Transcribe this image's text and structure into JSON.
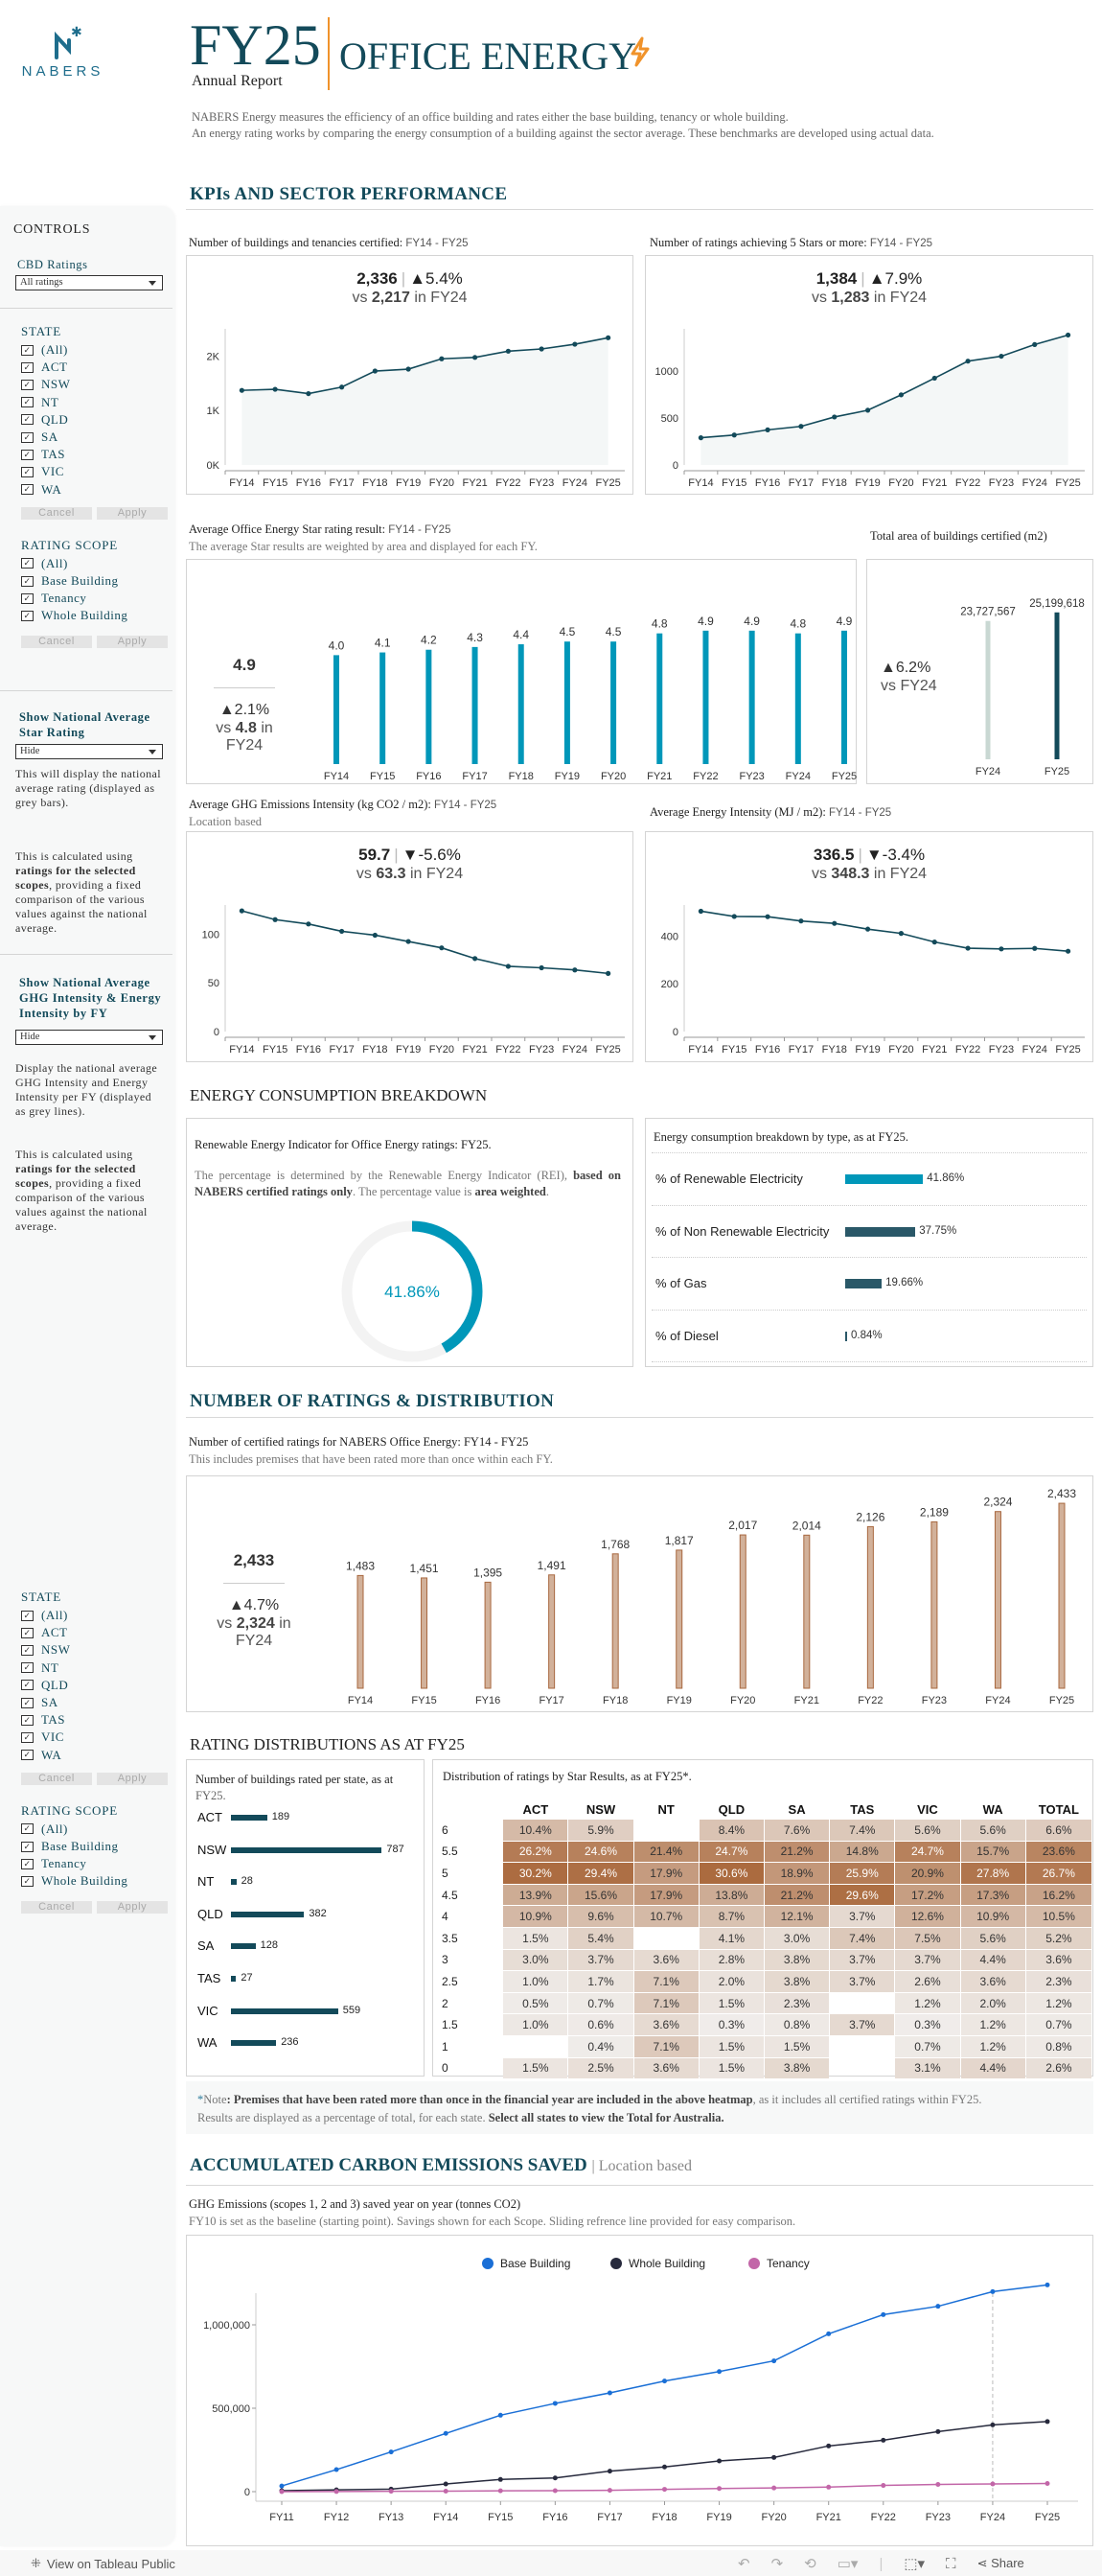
{
  "header": {
    "logo_text": "NABERS",
    "fy": "FY25",
    "subtitle": "Annual Report",
    "title": "OFFICE ENERGY",
    "description_1": "NABERS Energy measures the efficiency of an office building and rates either the base building, tenancy or whole building.",
    "description_2": "An energy rating works by comparing the energy consumption of a building against the sector average. These benchmarks are developed using actual data.",
    "accent": "#f0932b",
    "brand": "#134a5a"
  },
  "controls": {
    "title": "CONTROLS",
    "cbd_label": "CBD Ratings",
    "cbd_value": "All ratings",
    "state_label": "STATE",
    "states": [
      "(All)",
      "ACT",
      "NSW",
      "NT",
      "QLD",
      "SA",
      "TAS",
      "VIC",
      "WA"
    ],
    "cancel": "Cancel",
    "apply": "Apply",
    "scope_label": "RATING SCOPE",
    "scopes": [
      "(All)",
      "Base Building",
      "Tenancy",
      "Whole Building"
    ],
    "nat_star_label": "Show National Average Star Rating",
    "nat_star_value": "Hide",
    "nat_star_text": "This will display the national average rating (displayed as grey bars).",
    "calc_pre": "This is calculated using ",
    "calc_bold": "ratings for the selected scopes",
    "calc_post": ", providing a fixed comparison of the various values against the national average.",
    "nat_ghg_label": "Show National Average GHG Intensity & Energy Intensity by FY",
    "nat_ghg_value": "Hide",
    "nat_ghg_text": "Display the national average GHG Intensity and Energy Intensity per FY (displayed as grey lines)."
  },
  "kpis": {
    "heading": "KPIs AND SECTOR PERFORMANCE",
    "buildings": {
      "title": "Number of buildings and tenancies certified: ",
      "range": "FY14 - FY25",
      "value": "2,336",
      "change": "▲5.4%",
      "vs_pre": "vs ",
      "prev": "2,217",
      "vs_post": " in FY24"
    },
    "five_star": {
      "title": "Number of ratings achieving 5 Stars or more: ",
      "range": "FY14 - FY25",
      "value": "1,384",
      "change": "▲7.9%",
      "vs_pre": "vs ",
      "prev": "1,283",
      "vs_post": " in FY24"
    },
    "avg_star": {
      "title": "Average Office Energy Star rating result: ",
      "range": "FY14 - FY25",
      "subtitle": "The average Star results are weighted by area and displayed for each FY.",
      "value": "4.9",
      "change": "▲2.1%",
      "vs_pre": "vs ",
      "prev": "4.8",
      "vs_post": " in FY24"
    },
    "area": {
      "title": "Total area of buildings certified (m2)",
      "change": "▲6.2%",
      "vs": "vs FY24"
    },
    "ghg": {
      "title": "Average GHG Emissions Intensity (kg CO2 / m2): ",
      "range": "FY14 - FY25",
      "subtitle": "Location based",
      "value": "59.7",
      "change": "▼-5.6%",
      "vs_pre": "vs ",
      "prev": "63.3",
      "vs_post": " in FY24"
    },
    "energy": {
      "title": "Average Energy Intensity (MJ / m2): ",
      "range": "FY14 - FY25",
      "value": "336.5",
      "change": "▼-3.4%",
      "vs_pre": "vs ",
      "prev": "348.3",
      "vs_post": " in FY24"
    }
  },
  "consumption": {
    "heading": "ENERGY CONSUMPTION BREAKDOWN",
    "rei_title": "Renewable Energy Indicator for Office Energy ratings: FY25.",
    "rei_pre": "The percentage is determined by the Renewable Energy Indicator (REI), ",
    "rei_b1": "based on NABERS certified ratings only",
    "rei_mid": ". The percentage value is ",
    "rei_b2": "area weighted",
    "rei_end": ".",
    "rei_value": "41.86%",
    "rei_fraction": 0.4186,
    "breakdown_title": "Energy consumption breakdown by type, as at FY25.",
    "items": [
      {
        "label": "% of Renewable Electricity",
        "value": "41.86%",
        "pct": 41.86,
        "color": "#0097b9"
      },
      {
        "label": "% of Non Renewable Electricity",
        "value": "37.75%",
        "pct": 37.75,
        "color": "#2a5868"
      },
      {
        "label": "% of Gas",
        "value": "19.66%",
        "pct": 19.66,
        "color": "#2a5868"
      },
      {
        "label": "% of Diesel",
        "value": "0.84%",
        "pct": 0.84,
        "color": "#2a5868"
      }
    ]
  },
  "ratings": {
    "heading": "NUMBER OF RATINGS & DISTRIBUTION",
    "title": "Number of certified ratings for NABERS Office Energy: FY14 - FY25",
    "subtitle": "This includes premises that have been rated more than once within each FY.",
    "value": "2,433",
    "change": "▲4.7%",
    "vs_pre": "vs ",
    "prev": "2,324",
    "vs_post": " in FY24",
    "dist_heading": "RATING DISTRIBUTIONS AS AT FY25",
    "state_title": "Number of buildings rated per state, as at ",
    "state_title_fy": "FY25.",
    "heat_title": "Distribution of ratings by Star Results, as at FY25*.",
    "note_star": "*",
    "note_lbl": "Note",
    "note_b1": ": Premises that have been rated more than once in the financial year are included in the above heatmap",
    "note_t1": ", as it includes all certified ratings within FY25.",
    "note_t2": "Results are displayed as a percentage of total, for each state. ",
    "note_b2": "Select all states to view the Total for Australia."
  },
  "carbon": {
    "heading": "ACCUMULATED CARBON EMISSIONS SAVED",
    "heading_sub": "| Location based",
    "title": "GHG Emissions (scopes 1, 2 and 3) saved year on year (tonnes CO2)",
    "subtitle": "FY10 is set as the baseline (starting point). Savings shown for each Scope. Sliding refrence line provided for easy comparison."
  },
  "toolbar": {
    "tableau": "View on Tableau Public",
    "share": "Share"
  },
  "chart_data": [
    {
      "id": "buildings",
      "type": "area",
      "categories": [
        "FY14",
        "FY15",
        "FY16",
        "FY17",
        "FY18",
        "FY19",
        "FY20",
        "FY21",
        "FY22",
        "FY23",
        "FY24",
        "FY25"
      ],
      "values": [
        1370,
        1390,
        1310,
        1430,
        1725,
        1760,
        1950,
        1975,
        2090,
        2130,
        2217,
        2336
      ],
      "ylim": [
        0,
        2500
      ],
      "yticks": [
        {
          "v": 0,
          "label": "0K"
        },
        {
          "v": 1000,
          "label": "1K"
        },
        {
          "v": 2000,
          "label": "2K"
        }
      ],
      "color": "#134a5a"
    },
    {
      "id": "five_star",
      "type": "area",
      "categories": [
        "FY14",
        "FY15",
        "FY16",
        "FY17",
        "FY18",
        "FY19",
        "FY20",
        "FY21",
        "FY22",
        "FY23",
        "FY24",
        "FY25"
      ],
      "values": [
        290,
        319,
        374,
        411,
        511,
        583,
        747,
        925,
        1106,
        1158,
        1283,
        1384
      ],
      "ylim": [
        0,
        1450
      ],
      "yticks": [
        {
          "v": 0,
          "label": "0"
        },
        {
          "v": 500,
          "label": "500"
        },
        {
          "v": 1000,
          "label": "1000"
        }
      ],
      "color": "#134a5a"
    },
    {
      "id": "avg_star",
      "type": "bar",
      "categories": [
        "FY14",
        "FY15",
        "FY16",
        "FY17",
        "FY18",
        "FY19",
        "FY20",
        "FY21",
        "FY22",
        "FY23",
        "FY24",
        "FY25"
      ],
      "values": [
        4.0,
        4.1,
        4.2,
        4.3,
        4.4,
        4.5,
        4.5,
        4.8,
        4.9,
        4.9,
        4.8,
        4.9
      ],
      "labels": [
        "4.0",
        "4.1",
        "4.2",
        "4.3",
        "4.4",
        "4.5",
        "4.5",
        "4.8",
        "4.9",
        "4.9",
        "4.8",
        "4.9"
      ],
      "color": "#0097b9"
    },
    {
      "id": "area",
      "type": "bar",
      "categories": [
        "FY24",
        "FY25"
      ],
      "values": [
        23727567,
        25199618
      ],
      "labels": [
        "23,727,567",
        "25,199,618"
      ],
      "colors": [
        "#c9d8d3",
        "#134a5a"
      ]
    },
    {
      "id": "ghg",
      "type": "line",
      "categories": [
        "FY14",
        "FY15",
        "FY16",
        "FY17",
        "FY18",
        "FY19",
        "FY20",
        "FY21",
        "FY22",
        "FY23",
        "FY24",
        "FY25"
      ],
      "values": [
        124,
        115,
        110.5,
        103,
        99,
        92.5,
        86,
        75,
        67,
        65.5,
        63.3,
        59.7
      ],
      "ylim": [
        0,
        130
      ],
      "yticks": [
        {
          "v": 0,
          "label": "0"
        },
        {
          "v": 50,
          "label": "50"
        },
        {
          "v": 100,
          "label": "100"
        }
      ],
      "color": "#134a5a"
    },
    {
      "id": "energy",
      "type": "line",
      "categories": [
        "FY14",
        "FY15",
        "FY16",
        "FY17",
        "FY18",
        "FY19",
        "FY20",
        "FY21",
        "FY22",
        "FY23",
        "FY24",
        "FY25"
      ],
      "values": [
        504,
        482,
        481,
        463,
        453,
        429,
        411,
        375,
        349,
        346,
        348.3,
        336.5
      ],
      "ylim": [
        0,
        530
      ],
      "yticks": [
        {
          "v": 0,
          "label": "0"
        },
        {
          "v": 200,
          "label": "200"
        },
        {
          "v": 400,
          "label": "400"
        }
      ],
      "color": "#134a5a"
    },
    {
      "id": "ratings",
      "type": "bar",
      "categories": [
        "FY14",
        "FY15",
        "FY16",
        "FY17",
        "FY18",
        "FY19",
        "FY20",
        "FY21",
        "FY22",
        "FY23",
        "FY24",
        "FY25"
      ],
      "values": [
        1483,
        1451,
        1395,
        1491,
        1768,
        1817,
        2017,
        2014,
        2126,
        2189,
        2324,
        2433
      ],
      "labels": [
        "1,483",
        "1,451",
        "1,395",
        "1,491",
        "1,768",
        "1,817",
        "2,017",
        "2,014",
        "2,126",
        "2,189",
        "2,324",
        "2,433"
      ],
      "color": "#d2b19a"
    },
    {
      "id": "states",
      "type": "bar",
      "categories": [
        "ACT",
        "NSW",
        "NT",
        "QLD",
        "SA",
        "TAS",
        "VIC",
        "WA"
      ],
      "values": [
        189,
        787,
        28,
        382,
        128,
        27,
        559,
        236
      ],
      "labels": [
        "189",
        "787",
        "28",
        "382",
        "128",
        "27",
        "559",
        "236"
      ],
      "color": "#134a5a"
    },
    {
      "id": "heatmap",
      "type": "heatmap",
      "columns": [
        "ACT",
        "NSW",
        "NT",
        "QLD",
        "SA",
        "TAS",
        "VIC",
        "WA",
        "TOTAL"
      ],
      "rows": [
        "6",
        "5.5",
        "5",
        "4.5",
        "4",
        "3.5",
        "3",
        "2.5",
        "2",
        "1.5",
        "1",
        "0"
      ],
      "values": [
        [
          "10.4%",
          "5.9%",
          "",
          "8.4%",
          "7.6%",
          "7.4%",
          "5.6%",
          "5.6%",
          "6.6%"
        ],
        [
          "26.2%",
          "24.6%",
          "21.4%",
          "24.7%",
          "21.2%",
          "14.8%",
          "24.7%",
          "15.7%",
          "23.6%"
        ],
        [
          "30.2%",
          "29.4%",
          "17.9%",
          "30.6%",
          "18.9%",
          "25.9%",
          "20.9%",
          "27.8%",
          "26.7%"
        ],
        [
          "13.9%",
          "15.6%",
          "17.9%",
          "13.8%",
          "21.2%",
          "29.6%",
          "17.2%",
          "17.3%",
          "16.2%"
        ],
        [
          "10.9%",
          "9.6%",
          "10.7%",
          "8.7%",
          "12.1%",
          "3.7%",
          "12.6%",
          "10.9%",
          "10.5%"
        ],
        [
          "1.5%",
          "5.4%",
          "",
          "4.1%",
          "3.0%",
          "7.4%",
          "7.5%",
          "5.6%",
          "5.2%"
        ],
        [
          "3.0%",
          "3.7%",
          "3.6%",
          "2.8%",
          "3.8%",
          "3.7%",
          "3.7%",
          "4.4%",
          "3.6%"
        ],
        [
          "1.0%",
          "1.7%",
          "7.1%",
          "2.0%",
          "3.8%",
          "3.7%",
          "2.6%",
          "3.6%",
          "2.3%"
        ],
        [
          "0.5%",
          "0.7%",
          "7.1%",
          "1.5%",
          "2.3%",
          "",
          "1.2%",
          "2.0%",
          "1.2%"
        ],
        [
          "1.0%",
          "0.6%",
          "3.6%",
          "0.3%",
          "0.8%",
          "3.7%",
          "0.3%",
          "1.2%",
          "0.7%"
        ],
        [
          "",
          "0.4%",
          "7.1%",
          "1.5%",
          "1.5%",
          "",
          "0.7%",
          "1.2%",
          "0.8%"
        ],
        [
          "1.5%",
          "2.5%",
          "3.6%",
          "1.5%",
          "3.8%",
          "",
          "3.1%",
          "4.4%",
          "2.6%"
        ]
      ],
      "color_low": "#f1efed",
      "color_high": "#ab6b3f"
    },
    {
      "id": "carbon",
      "type": "line",
      "categories": [
        "FY11",
        "FY12",
        "FY13",
        "FY14",
        "FY15",
        "FY16",
        "FY17",
        "FY18",
        "FY19",
        "FY20",
        "FY21",
        "FY22",
        "FY23",
        "FY24",
        "FY25"
      ],
      "series": [
        {
          "name": "Base Building",
          "color": "#1a6fd6",
          "values": [
            34000,
            132000,
            238000,
            349000,
            458000,
            529000,
            592000,
            663000,
            720000,
            784000,
            946000,
            1061000,
            1111000,
            1199000,
            1239000
          ]
        },
        {
          "name": "Whole Building",
          "color": "#272a3d",
          "values": [
            6000,
            11000,
            15000,
            46000,
            73000,
            82000,
            123000,
            148000,
            184000,
            205000,
            274000,
            308000,
            360000,
            400000,
            420000
          ]
        },
        {
          "name": "Tenancy",
          "color": "#c266a8",
          "values": [
            0,
            1000,
            2000,
            3000,
            5000,
            6000,
            8000,
            14000,
            19000,
            22000,
            27000,
            37000,
            43000,
            46000,
            49000
          ]
        }
      ],
      "ylim": [
        0,
        1300000
      ],
      "yticks": [
        {
          "v": 0,
          "label": "0"
        },
        {
          "v": 500000,
          "label": "500,000"
        },
        {
          "v": 1000000,
          "label": "1,000,000"
        }
      ],
      "reference": "FY24",
      "legend": "top"
    }
  ]
}
